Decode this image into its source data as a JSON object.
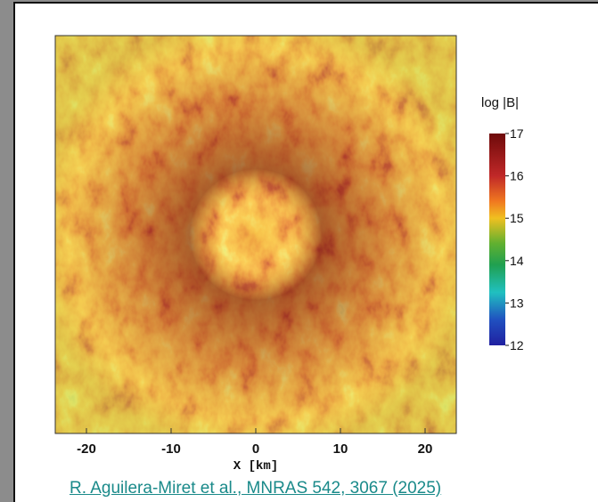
{
  "colorbar": {
    "label": "log |B|",
    "ticks": [
      "17",
      "16",
      "15",
      "14",
      "13",
      "12"
    ]
  },
  "x_axis": {
    "ticks": [
      "-20",
      "-10",
      "0",
      "10",
      "20"
    ],
    "label": "X  [km]"
  },
  "credit": "R. Aguilera-Miret et al., MNRAS 542, 3067 (2025)"
}
